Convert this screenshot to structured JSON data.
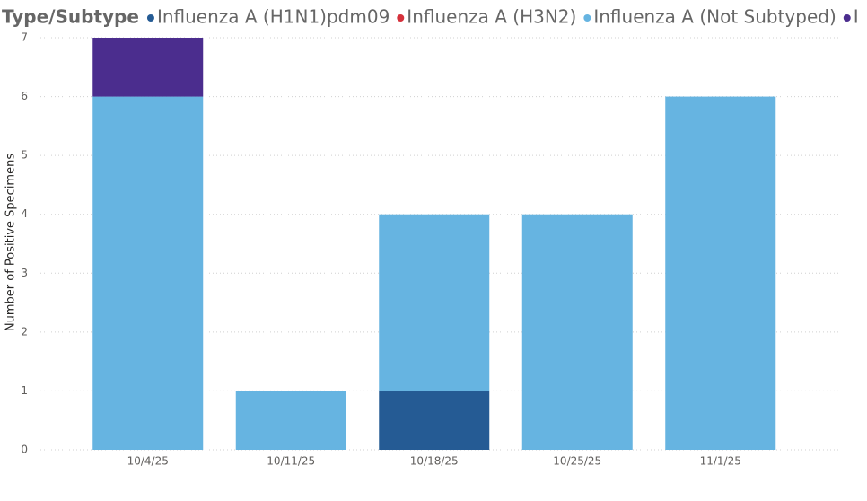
{
  "chart_data": {
    "type": "stacked_bar",
    "legend_title": "Type/Subtype",
    "y_label": "Number of Positive Specimens",
    "categories": [
      "10/4/25",
      "10/11/25",
      "10/18/25",
      "10/25/25",
      "11/1/25"
    ],
    "series": [
      {
        "name": "Influenza A (H1N1)pdm09",
        "color": "#255b94",
        "values": [
          null,
          null,
          1,
          null,
          null
        ]
      },
      {
        "name": "Influenza A (H3N2)",
        "color": "#d5313b",
        "values": [
          null,
          null,
          null,
          null,
          null
        ]
      },
      {
        "name": "Influenza A (Not Subtyped)",
        "color": "#66b4e1",
        "values": [
          6,
          1,
          3,
          4,
          6
        ]
      },
      {
        "name": "I",
        "color": "#4b2d8e",
        "values": [
          1,
          null,
          null,
          null,
          null
        ]
      }
    ],
    "ylim": [
      0,
      7
    ],
    "yticks": [
      0,
      1,
      2,
      3,
      4,
      5,
      6,
      7
    ],
    "grid": true,
    "legend": "top"
  }
}
